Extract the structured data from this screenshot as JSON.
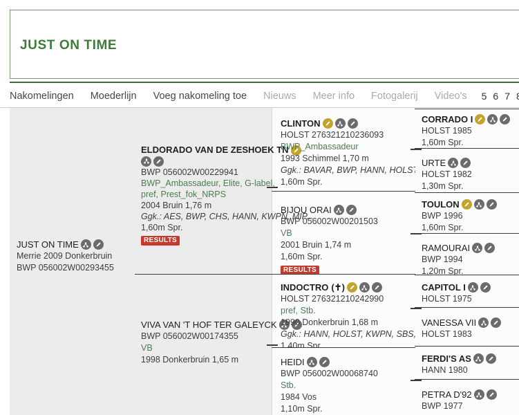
{
  "header": {
    "title": "JUST ON TIME"
  },
  "nav": {
    "items": [
      {
        "label": "Nakomelingen",
        "enabled": true
      },
      {
        "label": "Moederlijn",
        "enabled": true
      },
      {
        "label": "Voeg nakomeling toe",
        "enabled": true
      },
      {
        "label": "Nieuws",
        "enabled": false
      },
      {
        "label": "Meer info",
        "enabled": false
      },
      {
        "label": "Fotogalerij",
        "enabled": false
      },
      {
        "label": "Video's",
        "enabled": false
      }
    ],
    "generations": [
      "5",
      "6",
      "7",
      "8"
    ]
  },
  "results_label": "RESULTS",
  "icons": {
    "gold": "verified-edit-icon",
    "offspring": "offspring-icon",
    "edit": "edit-icon"
  },
  "colors": {
    "accent_green": "#3b7d36",
    "predicate_green": "#4c7d4f",
    "gold_badge": "#c3a42b",
    "results_red": "#c23b2e",
    "line_dark": "#3c3c3c"
  },
  "pedigree": {
    "root": {
      "slug": "just-on-time",
      "name": "JUST ON TIME",
      "bold": false,
      "gold": false,
      "lines": [
        {
          "t": "Merrie 2009 Donkerbruin",
          "c": "plain"
        },
        {
          "t": "BWP 056002W00293455",
          "c": "plain"
        }
      ],
      "results": false
    },
    "gen2": [
      {
        "slug": "eldorado-van-de-zeshoek-tn",
        "name": "ELDORADO VAN DE ZESHOEK TN",
        "bold": true,
        "gold": true,
        "icons_break": true,
        "lines": [
          {
            "t": "BWP 056002W00229941",
            "c": "plain"
          },
          {
            "t": "BWP_Ambassadeur, Elite, G-label, pref, Prest_fok_NRPS",
            "c": "green",
            "wrap": true
          },
          {
            "t": "2004 Bruin 1,76 m",
            "c": "plain"
          },
          {
            "t": "Ggk.: AES, BWP, CHS, HANN, KWPN, MIP...",
            "c": "italic"
          },
          {
            "t": "1,60m Spr.",
            "c": "plain"
          }
        ],
        "results": true
      },
      {
        "slug": "viva-van-t-hof-ter-galeyck",
        "name": "VIVA VAN 'T HOF TER GALEYCK",
        "bold": false,
        "gold": false,
        "lines": [
          {
            "t": "BWP 056002W00174355",
            "c": "plain"
          },
          {
            "t": "VB",
            "c": "green"
          },
          {
            "t": "1998 Donkerbruin 1,65 m",
            "c": "plain"
          }
        ],
        "results": false
      }
    ],
    "gen3": [
      {
        "slug": "clinton",
        "name": "CLINTON",
        "bold": true,
        "gold": true,
        "lines": [
          {
            "t": "HOLST 276321210236093",
            "c": "plain"
          },
          {
            "t": "BWP_Ambassadeur",
            "c": "green"
          },
          {
            "t": "1993 Schimmel 1,70 m",
            "c": "plain"
          },
          {
            "t": "Ggk.: BAVAR, BWP, HANN, HOLST, KWPN,...",
            "c": "italic"
          },
          {
            "t": "1,60m Spr.",
            "c": "plain"
          }
        ],
        "results": false
      },
      {
        "slug": "bijou-orai",
        "name": "BIJOU ORAI",
        "bold": false,
        "gold": false,
        "lines": [
          {
            "t": "BWP 056002W00201503",
            "c": "plain"
          },
          {
            "t": "VB",
            "c": "green"
          },
          {
            "t": "2001 Bruin 1,74 m",
            "c": "plain"
          },
          {
            "t": "1,60m Spr.",
            "c": "plain"
          }
        ],
        "results": true
      },
      {
        "slug": "indoctro",
        "name": "INDOCTRO",
        "suffix": "(✝)",
        "bold": true,
        "gold": true,
        "lines": [
          {
            "t": "HOLST 276321210242990",
            "c": "plain"
          },
          {
            "t": "pref, Stb.",
            "c": "green"
          },
          {
            "t": "1990 Donkerbruin 1,68 m",
            "c": "plain"
          },
          {
            "t": "Ggk.: HANN, HOLST, KWPN, SBS, SF, SWB",
            "c": "italic"
          },
          {
            "t": "1,40m Spr.",
            "c": "plain"
          }
        ],
        "results": false
      },
      {
        "slug": "heidi",
        "name": "HEIDI",
        "bold": false,
        "gold": false,
        "lines": [
          {
            "t": "BWP 056002W00068740",
            "c": "plain"
          },
          {
            "t": "Stb.",
            "c": "green"
          },
          {
            "t": "1984 Vos",
            "c": "plain"
          },
          {
            "t": "1,10m Spr.",
            "c": "plain"
          }
        ],
        "results": false
      }
    ],
    "gen4": [
      {
        "slug": "corrado-i",
        "name": "CORRADO I",
        "bold": true,
        "gold": true,
        "lines": [
          {
            "t": "HOLST 1985",
            "c": "plain"
          },
          {
            "t": "1,60m Spr.",
            "c": "plain"
          }
        ]
      },
      {
        "slug": "urte",
        "name": "URTE",
        "bold": false,
        "gold": false,
        "lines": [
          {
            "t": "HOLST 1982",
            "c": "plain"
          },
          {
            "t": "1,30m Spr.",
            "c": "plain"
          }
        ]
      },
      {
        "slug": "toulon",
        "name": "TOULON",
        "bold": true,
        "gold": true,
        "lines": [
          {
            "t": "BWP 1996",
            "c": "plain"
          },
          {
            "t": "1,60m Spr.",
            "c": "plain"
          }
        ]
      },
      {
        "slug": "ramourai",
        "name": "RAMOURAI",
        "bold": false,
        "gold": false,
        "lines": [
          {
            "t": "BWP 1994",
            "c": "plain"
          },
          {
            "t": "1,20m Spr.",
            "c": "plain"
          }
        ]
      },
      {
        "slug": "capitol-i",
        "name": "CAPITOL I",
        "bold": true,
        "gold": false,
        "lines": [
          {
            "t": "HOLST 1975",
            "c": "plain"
          }
        ]
      },
      {
        "slug": "vanessa-vii",
        "name": "VANESSA VII",
        "bold": false,
        "gold": false,
        "lines": [
          {
            "t": "HOLST 1983",
            "c": "plain"
          }
        ]
      },
      {
        "slug": "ferdis-as",
        "name": "FERDI'S AS",
        "bold": true,
        "gold": false,
        "lines": [
          {
            "t": "HANN 1980",
            "c": "plain"
          }
        ]
      },
      {
        "slug": "petra-d92",
        "name": "PETRA D'92",
        "bold": false,
        "gold": false,
        "lines": [
          {
            "t": "BWP 1977",
            "c": "plain"
          }
        ]
      }
    ]
  }
}
